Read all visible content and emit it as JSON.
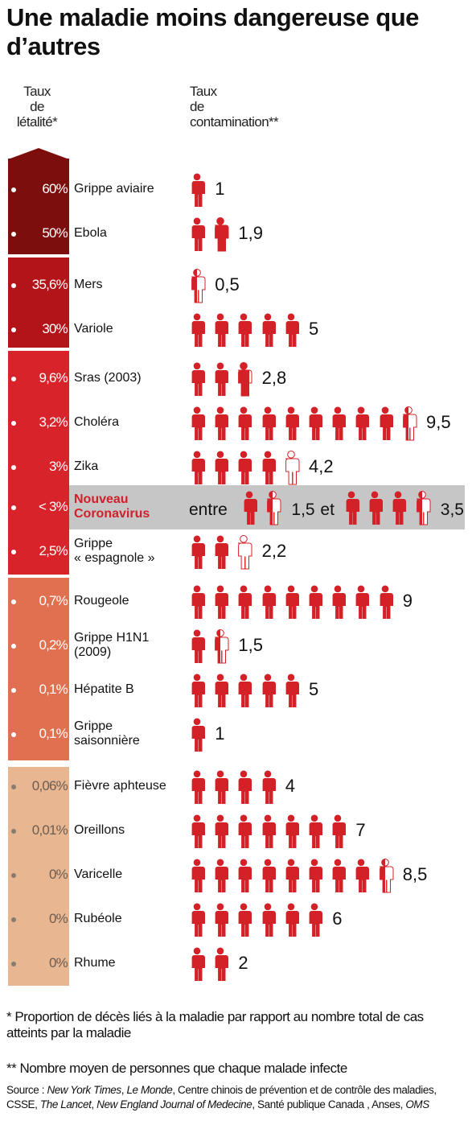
{
  "title": "Une maladie moins dangereuse que d’autres",
  "header_left": [
    "Taux",
    "de",
    "létalité*"
  ],
  "header_right": [
    "Taux",
    "de",
    "contamination**"
  ],
  "colors": {
    "group1": "#7d0e0e",
    "group2": "#b3141a",
    "group3": "#d9232b",
    "group4": "#e0704f",
    "group5": "#e8b792",
    "person": "#d42027",
    "band": "#c6c6c6",
    "highlight": "#d0202a"
  },
  "chart_data": {
    "type": "table",
    "columns": [
      "Taux de létalité*",
      "Maladie",
      "Taux de contamination**"
    ],
    "rows": [
      {
        "rate": "60%",
        "name": "Grippe aviaire",
        "value": 1,
        "label": "1",
        "group": 1
      },
      {
        "rate": "50%",
        "name": "Ebola",
        "value": 1.9,
        "label": "1,9",
        "group": 1
      },
      {
        "rate": "35,6%",
        "name": "Mers",
        "value": 0.5,
        "label": "0,5",
        "group": 2
      },
      {
        "rate": "30%",
        "name": "Variole",
        "value": 5,
        "label": "5",
        "group": 2
      },
      {
        "rate": "9,6%",
        "name": "Sras (2003)",
        "value": 2.8,
        "label": "2,8",
        "group": 3
      },
      {
        "rate": "3,2%",
        "name": "Choléra",
        "value": 9.5,
        "label": "9,5",
        "group": 3
      },
      {
        "rate": "3%",
        "name": "Zika",
        "value": 4.2,
        "label": "4,2",
        "group": 3
      },
      {
        "rate": "< 3%",
        "name": "Nouveau Coronavirus",
        "name_lines": [
          "Nouveau",
          "Coronavirus"
        ],
        "value_min": 1.5,
        "value_max": 3.5,
        "label_min": "1,5",
        "label_max": "3,5",
        "prefix": "entre",
        "mid": "et",
        "group": 3,
        "highlight": true
      },
      {
        "rate": "2,5%",
        "name": "Grippe « espagnole »",
        "name_lines": [
          "Grippe",
          "« espagnole »"
        ],
        "value": 2.2,
        "label": "2,2",
        "group": 3
      },
      {
        "rate": "0,7%",
        "name": "Rougeole",
        "value": 9,
        "label": "9",
        "group": 4
      },
      {
        "rate": "0,2%",
        "name": "Grippe H1N1 (2009)",
        "name_lines": [
          "Grippe H1N1",
          "(2009)"
        ],
        "value": 1.5,
        "label": "1,5",
        "group": 4
      },
      {
        "rate": "0,1%",
        "name": "Hépatite B",
        "value": 5,
        "label": "5",
        "group": 4
      },
      {
        "rate": "0,1%",
        "name": "Grippe saisonnière",
        "name_lines": [
          "Grippe",
          "saisonnière"
        ],
        "value": 1,
        "label": "1",
        "group": 4
      },
      {
        "rate": "0,06%",
        "name": "Fièvre aphteuse",
        "value": 4,
        "label": "4",
        "group": 5
      },
      {
        "rate": "0,01%",
        "name": "Oreillons",
        "value": 7,
        "label": "7",
        "group": 5
      },
      {
        "rate": "0%",
        "name": "Varicelle",
        "value": 8.5,
        "label": "8,5",
        "group": 5
      },
      {
        "rate": "0%",
        "name": "Rubéole",
        "value": 6,
        "label": "6",
        "group": 5
      },
      {
        "rate": "0%",
        "name": "Rhume",
        "value": 2,
        "label": "2",
        "group": 5
      }
    ]
  },
  "footnote1": "* Proportion de décès liés à la maladie par rapport au nombre total de cas atteints par la maladie",
  "footnote2": "** Nombre moyen de personnes que chaque malade infecte",
  "source_parts": [
    {
      "text": "Source : ",
      "italic": false
    },
    {
      "text": "New York Times",
      "italic": true
    },
    {
      "text": ", ",
      "italic": false
    },
    {
      "text": "Le Monde",
      "italic": true
    },
    {
      "text": ", Centre chinois de prévention et de contrôle des maladies, CSSE, ",
      "italic": false
    },
    {
      "text": "The Lancet",
      "italic": true
    },
    {
      "text": ", ",
      "italic": false
    },
    {
      "text": "New England Journal of Medecine",
      "italic": true
    },
    {
      "text": ", Santé publique Canada , Anses, ",
      "italic": false
    },
    {
      "text": "OMS",
      "italic": true
    }
  ]
}
